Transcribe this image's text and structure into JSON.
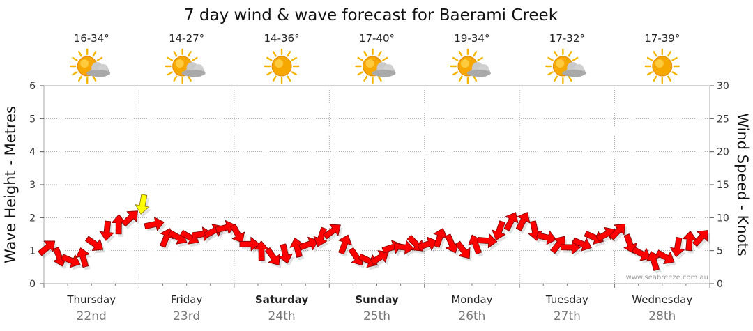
{
  "chart_data": {
    "type": "line",
    "title": "7 day wind & wave forecast for Baerami Creek",
    "ylabel_left": "Wave Height - Metres",
    "ylabel_right": "Wind Speed - Knots",
    "ylim_left": [
      0,
      6
    ],
    "ylim_right": [
      0,
      30
    ],
    "yticks_left": [
      "0",
      "1",
      "2",
      "3",
      "4",
      "5",
      "6"
    ],
    "yticks_right": [
      "0",
      "5",
      "10",
      "15",
      "20",
      "25",
      "30"
    ],
    "days": [
      {
        "day": "Thursday",
        "date": "22nd",
        "temp": "16-34°",
        "weather": "partly-cloudy",
        "weekend": false
      },
      {
        "day": "Friday",
        "date": "23rd",
        "temp": "14-27°",
        "weather": "partly-cloudy",
        "weekend": false
      },
      {
        "day": "Saturday",
        "date": "24th",
        "temp": "14-36°",
        "weather": "sunny",
        "weekend": true
      },
      {
        "day": "Sunday",
        "date": "25th",
        "temp": "17-40°",
        "weather": "partly-cloudy",
        "weekend": true
      },
      {
        "day": "Monday",
        "date": "26th",
        "temp": "19-34°",
        "weather": "partly-cloudy",
        "weekend": false
      },
      {
        "day": "Tuesday",
        "date": "27th",
        "temp": "17-32°",
        "weather": "partly-cloudy",
        "weekend": false
      },
      {
        "day": "Wednesday",
        "date": "28th",
        "temp": "17-39°",
        "weather": "sunny",
        "weekend": false
      }
    ],
    "grid": true,
    "series": [
      {
        "name": "Wind Speed - Knots",
        "axis": "right",
        "marker": "arrow",
        "color": "#ff0000",
        "highlight_color": "#ffff00",
        "x_hours": [
          0,
          3,
          6,
          9,
          12,
          15,
          18,
          21,
          24,
          27,
          30,
          33,
          36,
          39,
          42,
          45,
          48,
          51,
          54,
          57,
          60,
          63,
          66,
          69,
          72,
          75,
          78,
          81,
          84,
          87,
          90,
          93,
          96,
          99,
          102,
          105,
          108,
          111,
          114,
          117,
          120,
          123,
          126,
          129,
          132,
          135,
          138,
          141,
          144,
          147,
          150,
          153,
          156,
          159,
          162,
          165
        ],
        "values": [
          5.5,
          4,
          3.5,
          4,
          6,
          8,
          9,
          10,
          12,
          9,
          7,
          7,
          7,
          7.5,
          8,
          8.5,
          7.5,
          6,
          5,
          4,
          4.5,
          5.5,
          6,
          7,
          8,
          6,
          4,
          3.5,
          4,
          5.5,
          5.5,
          6,
          6,
          7,
          6,
          5,
          6,
          6.5,
          8,
          9.5,
          9.5,
          8,
          7,
          6,
          5.5,
          6,
          7,
          7.5,
          8,
          6,
          4.5,
          3.5,
          4,
          5.5,
          6.5,
          7
        ],
        "highlight_index": 8
      }
    ]
  },
  "credit": "www.seabreeze.com.au",
  "colors": {
    "grid": "#a8a8a8",
    "arrow": "#ff0000",
    "arrow_highlight": "#ffff00",
    "sun": "#f7a800",
    "cloud": "#b8b8b8"
  }
}
